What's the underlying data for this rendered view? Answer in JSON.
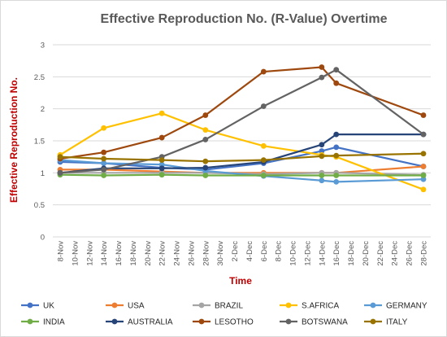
{
  "chart_data": {
    "type": "line",
    "title": "Effective Reproduction No. (R-Value) Overtime",
    "xlabel": "Time",
    "ylabel": "Effective Reproduction No.",
    "ylim": [
      0,
      3
    ],
    "yticks": [
      "0",
      "0.5",
      "1",
      "1.5",
      "2",
      "2.5",
      "3"
    ],
    "categories": [
      "8-Nov",
      "10-Nov",
      "12-Nov",
      "14-Nov",
      "16-Nov",
      "18-Nov",
      "20-Nov",
      "22-Nov",
      "24-Nov",
      "26-Nov",
      "28-Nov",
      "30-Nov",
      "2-Dec",
      "4-Dec",
      "6-Dec",
      "8-Dec",
      "10-Dec",
      "12-Dec",
      "14-Dec",
      "16-Dec",
      "18-Dec",
      "20-Dec",
      "22-Dec",
      "24-Dec",
      "26-Dec",
      "28-Dec"
    ],
    "grid": true,
    "legend_position": "bottom",
    "series": [
      {
        "name": "UK",
        "color": "#4472c4",
        "points": [
          [
            0,
            1.17
          ],
          [
            3,
            1.15
          ],
          [
            7,
            1.08
          ],
          [
            10,
            1.05
          ],
          [
            14,
            1.15
          ],
          [
            18,
            1.34
          ],
          [
            19,
            1.4
          ],
          [
            25,
            1.1
          ]
        ]
      },
      {
        "name": "USA",
        "color": "#ed7d31",
        "points": [
          [
            0,
            1.05
          ],
          [
            3,
            1.05
          ],
          [
            7,
            1.02
          ],
          [
            10,
            1.0
          ],
          [
            14,
            1.0
          ],
          [
            18,
            1.0
          ],
          [
            19,
            1.0
          ],
          [
            25,
            1.1
          ]
        ]
      },
      {
        "name": "BRAZIL",
        "color": "#a5a5a5",
        "points": [
          [
            0,
            1.0
          ],
          [
            3,
            1.0
          ],
          [
            7,
            1.0
          ],
          [
            10,
            1.0
          ],
          [
            14,
            0.98
          ],
          [
            18,
            1.0
          ],
          [
            19,
            1.0
          ],
          [
            25,
            0.97
          ]
        ]
      },
      {
        "name": "S.AFRICA",
        "color": "#ffc000",
        "points": [
          [
            0,
            1.28
          ],
          [
            3,
            1.7
          ],
          [
            7,
            1.93
          ],
          [
            10,
            1.67
          ],
          [
            14,
            1.42
          ],
          [
            18,
            1.28
          ],
          [
            19,
            1.25
          ],
          [
            25,
            0.74
          ]
        ]
      },
      {
        "name": "GERMANY",
        "color": "#5b9bd5",
        "points": [
          [
            0,
            1.2
          ],
          [
            3,
            1.15
          ],
          [
            7,
            1.13
          ],
          [
            10,
            1.03
          ],
          [
            14,
            0.95
          ],
          [
            18,
            0.88
          ],
          [
            19,
            0.86
          ],
          [
            25,
            0.9
          ]
        ]
      },
      {
        "name": "INDIA",
        "color": "#70ad47",
        "points": [
          [
            0,
            0.97
          ],
          [
            3,
            0.96
          ],
          [
            7,
            0.97
          ],
          [
            10,
            0.96
          ],
          [
            14,
            0.96
          ],
          [
            18,
            0.96
          ],
          [
            19,
            0.96
          ],
          [
            25,
            0.96
          ]
        ]
      },
      {
        "name": "AUSTRALIA",
        "color": "#264478",
        "points": [
          [
            0,
            1.0
          ],
          [
            3,
            1.07
          ],
          [
            7,
            1.07
          ],
          [
            10,
            1.08
          ],
          [
            14,
            1.17
          ],
          [
            18,
            1.44
          ],
          [
            19,
            1.6
          ],
          [
            25,
            1.6
          ]
        ]
      },
      {
        "name": "LESOTHO",
        "color": "#9e480e",
        "points": [
          [
            0,
            1.22
          ],
          [
            3,
            1.32
          ],
          [
            7,
            1.55
          ],
          [
            10,
            1.9
          ],
          [
            14,
            2.58
          ],
          [
            18,
            2.65
          ],
          [
            19,
            2.4
          ],
          [
            25,
            1.9
          ]
        ]
      },
      {
        "name": "BOTSWANA",
        "color": "#636363",
        "points": [
          [
            0,
            1.0
          ],
          [
            3,
            1.05
          ],
          [
            7,
            1.25
          ],
          [
            10,
            1.52
          ],
          [
            14,
            2.04
          ],
          [
            18,
            2.49
          ],
          [
            19,
            2.61
          ],
          [
            25,
            1.6
          ]
        ]
      },
      {
        "name": "ITALY",
        "color": "#997300",
        "points": [
          [
            0,
            1.25
          ],
          [
            3,
            1.22
          ],
          [
            7,
            1.2
          ],
          [
            10,
            1.18
          ],
          [
            14,
            1.2
          ],
          [
            18,
            1.26
          ],
          [
            19,
            1.27
          ],
          [
            25,
            1.3
          ]
        ]
      }
    ]
  }
}
